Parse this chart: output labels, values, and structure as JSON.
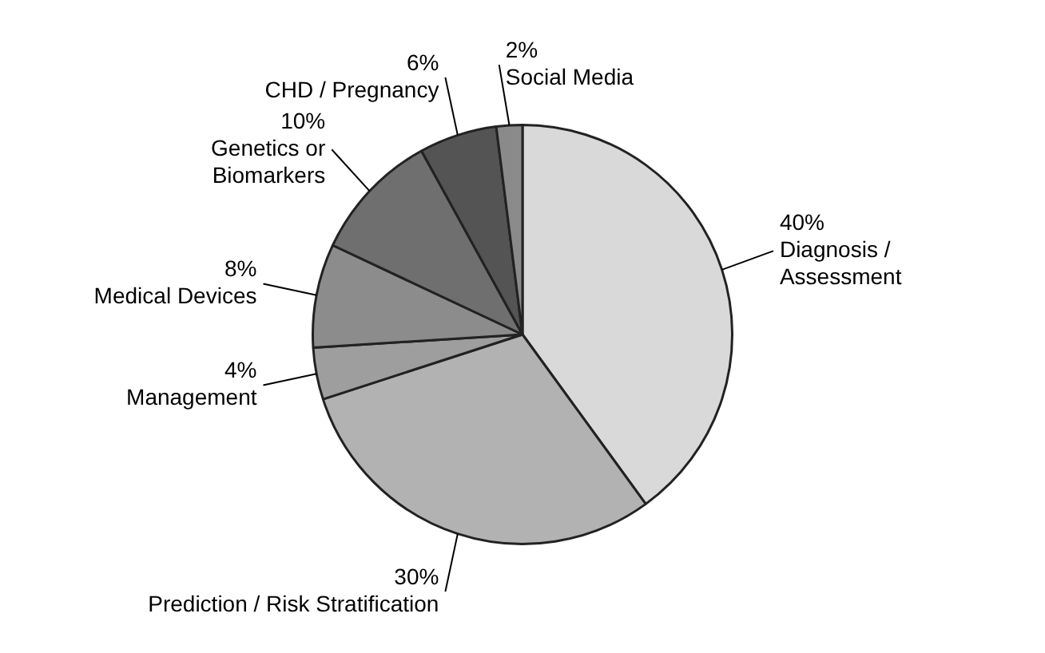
{
  "chart_data": {
    "type": "pie",
    "categories": [
      "Diagnosis /\nAssessment",
      "Prediction / Risk Stratification",
      "Management",
      "Medical Devices",
      "Genetics or\nBiomarkers",
      "CHD / Pregnancy",
      "Social Media"
    ],
    "values": [
      40,
      30,
      4,
      8,
      10,
      6,
      2
    ],
    "colors": [
      "#d9d9d9",
      "#b2b2b2",
      "#9e9e9e",
      "#8c8c8c",
      "#6f6f6f",
      "#545454",
      "#8a8a8a"
    ],
    "value_labels": [
      "40%",
      "30%",
      "4%",
      "8%",
      "10%",
      "6%",
      "2%"
    ],
    "legend": false
  }
}
